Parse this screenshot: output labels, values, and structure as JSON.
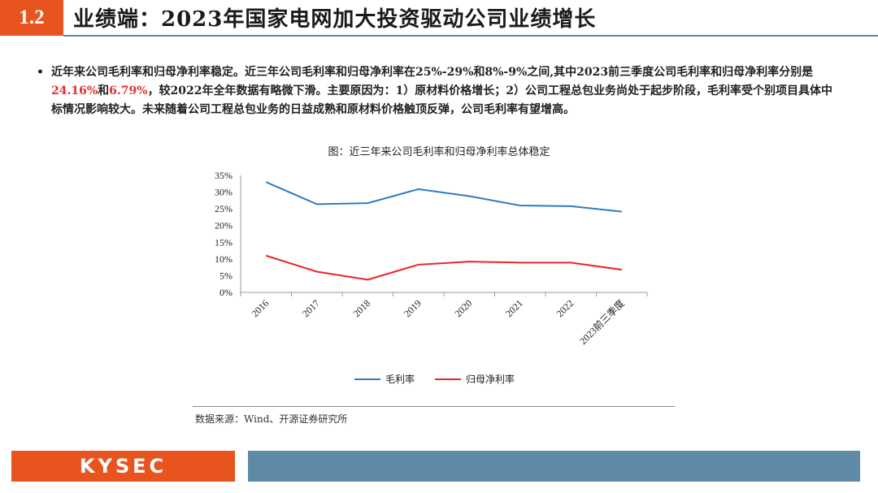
{
  "header": {
    "section_number": "1.2",
    "title": "业绩端：2023年国家电网加大投资驱动公司业绩增长"
  },
  "bullet": {
    "marker": "•",
    "text_part1": "近年来公司毛利率和归母净利率稳定。近三年公司毛利率和归母净利率在25%-29%和8%-9%之间,其中2023前三季度公司毛利率和归母净利率分别是",
    "highlight1": "24.16%",
    "text_part2": "和",
    "highlight2": "6.79%",
    "text_part3": "，较2022年全年数据有略微下滑。主要原因为：1）原材料价格增长；2）公司工程总包业务尚处于起步阶段，毛利率受个别项目具体中标情况影响较大。未来随着公司工程总包业务的日益成熟和原材料价格触顶反弹，公司毛利率有望增高。"
  },
  "figure": {
    "title": "图：近三年来公司毛利率和归母净利率总体稳定",
    "source": "数据来源：Wind、开源证券研究所"
  },
  "chart_data": {
    "type": "line",
    "categories": [
      "2016",
      "2017",
      "2018",
      "2019",
      "2020",
      "2021",
      "2022",
      "2023前三季度"
    ],
    "series": [
      {
        "name": "毛利率",
        "color": "#2e7dc2",
        "values": [
          33.0,
          26.4,
          26.7,
          30.9,
          28.8,
          26.0,
          25.8,
          24.16
        ]
      },
      {
        "name": "归母净利率",
        "color": "#e8262a",
        "values": [
          11.0,
          6.2,
          3.8,
          8.3,
          9.2,
          8.9,
          8.9,
          6.79
        ]
      }
    ],
    "ylim": [
      0,
      35
    ],
    "yticks": [
      "0%",
      "5%",
      "10%",
      "15%",
      "20%",
      "25%",
      "30%",
      "35%"
    ],
    "legend_position": "bottom",
    "grid": false
  },
  "footer": {
    "logo_text": "KYSEC",
    "brand_color": "#e8541e",
    "bar_color": "#5e8aa6"
  }
}
